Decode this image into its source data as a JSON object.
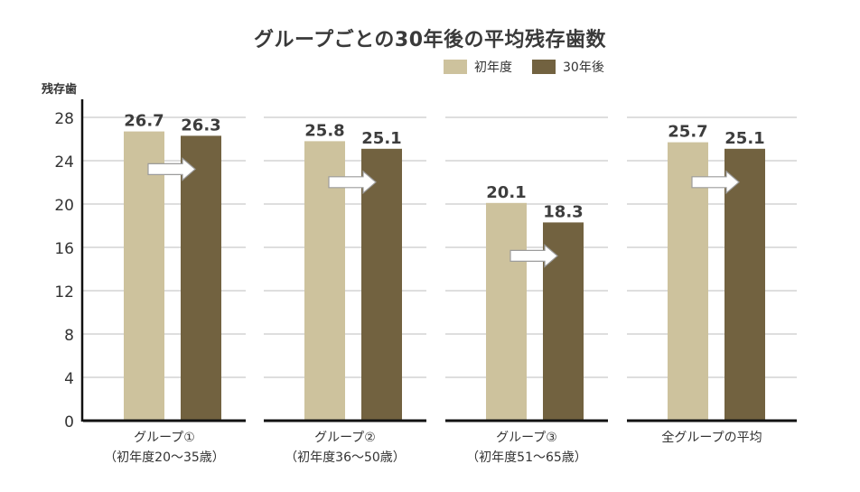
{
  "chart_data": {
    "type": "bar",
    "title": "グループごとの30年後の平均残存歯数",
    "ylabel": "残存歯",
    "ylim": [
      0,
      28
    ],
    "yticks": [
      0,
      4,
      8,
      12,
      16,
      20,
      24,
      28
    ],
    "grid": true,
    "legend_position": "top-right",
    "categories": [
      [
        "グループ①",
        "（初年度20〜35歳）"
      ],
      [
        "グループ②",
        "（初年度36〜50歳）"
      ],
      [
        "グループ③",
        "（初年度51〜65歳）"
      ],
      [
        "全グループの平均"
      ]
    ],
    "series": [
      {
        "name": "初年度",
        "color": "#cdc29d",
        "values": [
          26.7,
          25.8,
          20.1,
          25.7
        ],
        "labels": [
          "26.7",
          "25.8",
          "20.1",
          "25.7"
        ]
      },
      {
        "name": "30年後",
        "color": "#726240",
        "values": [
          26.3,
          25.1,
          18.3,
          25.1
        ],
        "labels": [
          "26.3",
          "25.1",
          "18.3",
          "25.1"
        ]
      }
    ],
    "arrow_icon": "right-arrow-icon"
  }
}
